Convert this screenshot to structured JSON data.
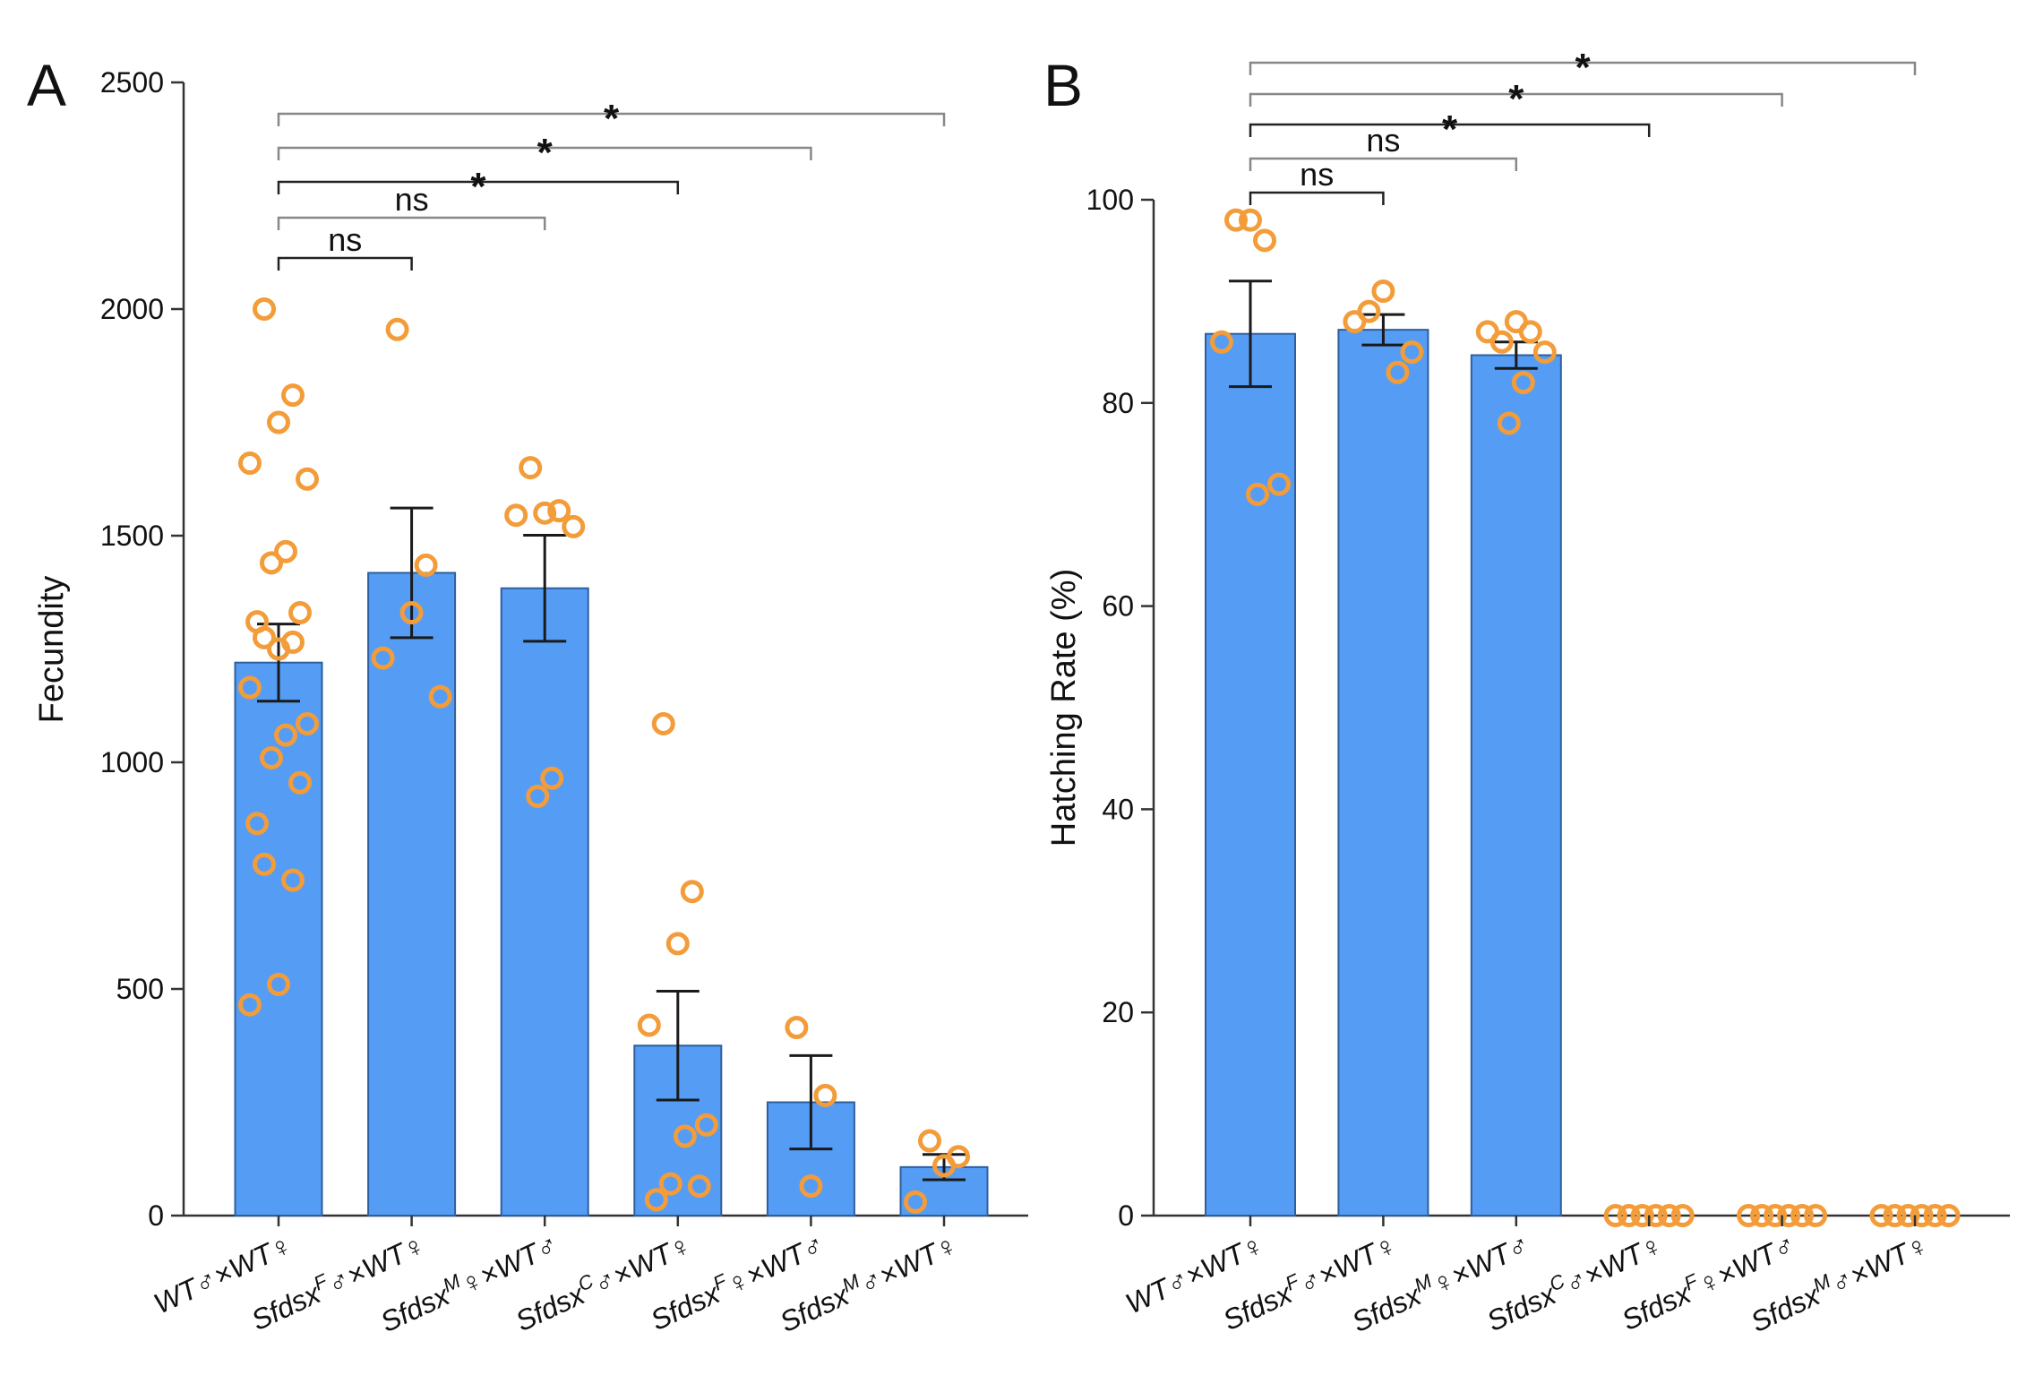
{
  "chart_data": [
    {
      "type": "bar",
      "panel": "A",
      "ylabel": "Fecundity",
      "ylim": [
        0,
        2500
      ],
      "yticks": [
        0,
        500,
        1000,
        1500,
        2000,
        2500
      ],
      "categories": [
        {
          "label": "WT♂×WT♀",
          "base": "WT♂×WT♀",
          "sup": ""
        },
        {
          "label": "SfdsxF♂×WT♀",
          "base": "Sfdsx",
          "sup": "F",
          "rest": "♂×WT♀"
        },
        {
          "label": "SfdsxM♀×WT♂",
          "base": "Sfdsx",
          "sup": "M",
          "rest": "♀×WT♂"
        },
        {
          "label": "SfdsxC♂×WT♀",
          "base": "Sfdsx",
          "sup": "C",
          "rest": "♂×WT♀"
        },
        {
          "label": "SfdsxF♀×WT♂",
          "base": "Sfdsx",
          "sup": "F",
          "rest": "♀×WT♂"
        },
        {
          "label": "SfdsxM♂×WT♀",
          "base": "Sfdsx",
          "sup": "M",
          "rest": "♂×WT♀"
        }
      ],
      "means": [
        1220,
        1418,
        1384,
        375,
        250,
        107
      ],
      "sem": [
        85,
        143,
        117,
        120,
        103,
        28
      ],
      "points": [
        [
          2000,
          1810,
          1750,
          1660,
          1625,
          1465,
          1440,
          1330,
          1310,
          1275,
          1265,
          1250,
          1165,
          1085,
          1060,
          1010,
          955,
          865,
          775,
          740,
          510,
          465
        ],
        [
          1955,
          1435,
          1330,
          1230,
          1145
        ],
        [
          1650,
          1555,
          1550,
          1545,
          1520,
          965,
          925
        ],
        [
          1085,
          715,
          600,
          420,
          200,
          175,
          70,
          65,
          35
        ],
        [
          415,
          265,
          65
        ],
        [
          165,
          130,
          110,
          30
        ]
      ],
      "comparisons": [
        {
          "groups": [
            0,
            1
          ],
          "label": "ns"
        },
        {
          "groups": [
            0,
            2
          ],
          "label": "ns"
        },
        {
          "groups": [
            0,
            3
          ],
          "label": "*"
        },
        {
          "groups": [
            0,
            4
          ],
          "label": "*"
        },
        {
          "groups": [
            0,
            5
          ],
          "label": "*"
        }
      ]
    },
    {
      "type": "bar",
      "panel": "B",
      "ylabel": "Hatching Rate (%)",
      "ylim": [
        0,
        100
      ],
      "yticks": [
        0,
        20,
        40,
        60,
        80,
        100
      ],
      "categories": [
        {
          "label": "WT♂×WT♀",
          "base": "WT♂×WT♀",
          "sup": ""
        },
        {
          "label": "SfdsxF♂×WT♀",
          "base": "Sfdsx",
          "sup": "F",
          "rest": "♂×WT♀"
        },
        {
          "label": "SfdsxM♀×WT♂",
          "base": "Sfdsx",
          "sup": "M",
          "rest": "♀×WT♂"
        },
        {
          "label": "SfdsxC♂×WT♀",
          "base": "Sfdsx",
          "sup": "C",
          "rest": "♂×WT♀"
        },
        {
          "label": "SfdsxF♀×WT♂",
          "base": "Sfdsx",
          "sup": "F",
          "rest": "♀×WT♂"
        },
        {
          "label": "SfdsxM♂×WT♀",
          "base": "Sfdsx",
          "sup": "M",
          "rest": "♂×WT♀"
        }
      ],
      "means": [
        86.8,
        87.2,
        84.7,
        0,
        0,
        0
      ],
      "sem": [
        5.2,
        1.5,
        1.3,
        0,
        0,
        0
      ],
      "points": [
        [
          98,
          96,
          98,
          86,
          72,
          71
        ],
        [
          89,
          83,
          91,
          88,
          85
        ],
        [
          86,
          87,
          88,
          87,
          85,
          82,
          78
        ],
        [
          0,
          0,
          0,
          0,
          0,
          0
        ],
        [
          0,
          0,
          0,
          0,
          0,
          0
        ],
        [
          0,
          0,
          0,
          0,
          0,
          0
        ]
      ],
      "comparisons": [
        {
          "groups": [
            0,
            1
          ],
          "label": "ns"
        },
        {
          "groups": [
            0,
            2
          ],
          "label": "ns"
        },
        {
          "groups": [
            0,
            3
          ],
          "label": "*"
        },
        {
          "groups": [
            0,
            4
          ],
          "label": "*"
        },
        {
          "groups": [
            0,
            5
          ],
          "label": "*"
        }
      ]
    }
  ],
  "colors": {
    "bar_fill": "#559cf5",
    "bar_edge": "#2d5f9e",
    "point": "#f39c3a",
    "axis": "#333333",
    "bracket_dark": "#222222",
    "bracket_light": "#888888"
  }
}
